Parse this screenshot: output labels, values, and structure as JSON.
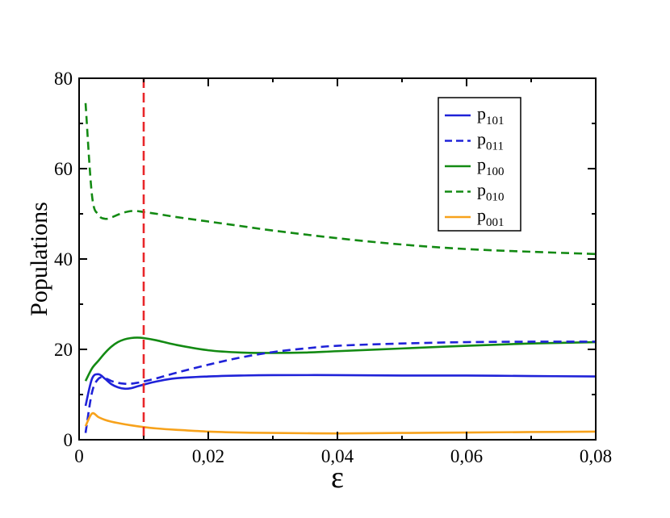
{
  "chart_data": {
    "type": "line",
    "xlabel": "ε",
    "ylabel": "Populations",
    "xlim": [
      0,
      0.08
    ],
    "ylim": [
      0,
      80
    ],
    "xticks": [
      0,
      0.02,
      0.04,
      0.06,
      0.08
    ],
    "xtick_labels": [
      "0",
      "0,02",
      "0,04",
      "0,06",
      "0,08"
    ],
    "yticks": [
      0,
      20,
      40,
      60,
      80
    ],
    "ytick_labels": [
      "0",
      "20",
      "40",
      "60",
      "80"
    ],
    "legend_position": "top-right",
    "grid": false,
    "vertical_marker": {
      "x": 0.01,
      "color": "#e8262a",
      "style": "dashed"
    },
    "series": [
      {
        "name": "p101",
        "name_base": "p",
        "name_sub": "101",
        "color": "#1f22d8",
        "style": "solid",
        "x": [
          0.001,
          0.002,
          0.003,
          0.004,
          0.005,
          0.006,
          0.007,
          0.008,
          0.009,
          0.01,
          0.012,
          0.015,
          0.02,
          0.025,
          0.03,
          0.04,
          0.05,
          0.06,
          0.07,
          0.08
        ],
        "y": [
          7.5,
          13.5,
          14.5,
          13.5,
          12.3,
          11.6,
          11.3,
          11.4,
          11.8,
          12.2,
          12.9,
          13.6,
          14.0,
          14.2,
          14.3,
          14.3,
          14.2,
          14.2,
          14.1,
          14.0
        ]
      },
      {
        "name": "p011",
        "name_base": "p",
        "name_sub": "011",
        "color": "#1f22d8",
        "style": "dashed",
        "x": [
          0.001,
          0.002,
          0.003,
          0.004,
          0.005,
          0.006,
          0.007,
          0.008,
          0.009,
          0.01,
          0.012,
          0.015,
          0.02,
          0.025,
          0.03,
          0.035,
          0.04,
          0.05,
          0.06,
          0.07,
          0.08
        ],
        "y": [
          1.5,
          10.5,
          13.5,
          13.6,
          13.0,
          12.6,
          12.4,
          12.4,
          12.6,
          12.9,
          13.6,
          14.8,
          16.6,
          18.2,
          19.4,
          20.2,
          20.8,
          21.3,
          21.6,
          21.7,
          21.7
        ]
      },
      {
        "name": "p100",
        "name_base": "p",
        "name_sub": "100",
        "color": "#138a13",
        "style": "solid",
        "x": [
          0.001,
          0.002,
          0.003,
          0.004,
          0.005,
          0.006,
          0.007,
          0.008,
          0.009,
          0.01,
          0.012,
          0.015,
          0.02,
          0.025,
          0.03,
          0.035,
          0.04,
          0.05,
          0.06,
          0.07,
          0.08
        ],
        "y": [
          13.0,
          15.8,
          17.5,
          19.2,
          20.6,
          21.6,
          22.2,
          22.5,
          22.6,
          22.5,
          22.0,
          21.0,
          19.8,
          19.3,
          19.2,
          19.3,
          19.6,
          20.2,
          20.8,
          21.3,
          21.6
        ]
      },
      {
        "name": "p010",
        "name_base": "p",
        "name_sub": "010",
        "color": "#138a13",
        "style": "dashed",
        "x": [
          0.001,
          0.002,
          0.003,
          0.004,
          0.005,
          0.006,
          0.007,
          0.008,
          0.009,
          0.01,
          0.012,
          0.015,
          0.02,
          0.025,
          0.03,
          0.04,
          0.05,
          0.06,
          0.07,
          0.08
        ],
        "y": [
          74.5,
          54.0,
          49.8,
          48.9,
          49.2,
          49.8,
          50.3,
          50.6,
          50.6,
          50.4,
          50.0,
          49.3,
          48.3,
          47.3,
          46.3,
          44.6,
          43.2,
          42.2,
          41.6,
          41.1
        ]
      },
      {
        "name": "p001",
        "name_base": "p",
        "name_sub": "001",
        "color": "#f7a21b",
        "style": "solid",
        "x": [
          0.001,
          0.002,
          0.003,
          0.004,
          0.005,
          0.006,
          0.008,
          0.01,
          0.012,
          0.015,
          0.02,
          0.025,
          0.03,
          0.04,
          0.05,
          0.06,
          0.07,
          0.08
        ],
        "y": [
          3.0,
          5.8,
          5.0,
          4.4,
          4.0,
          3.7,
          3.2,
          2.8,
          2.5,
          2.2,
          1.8,
          1.6,
          1.5,
          1.4,
          1.5,
          1.6,
          1.7,
          1.8
        ]
      }
    ]
  }
}
